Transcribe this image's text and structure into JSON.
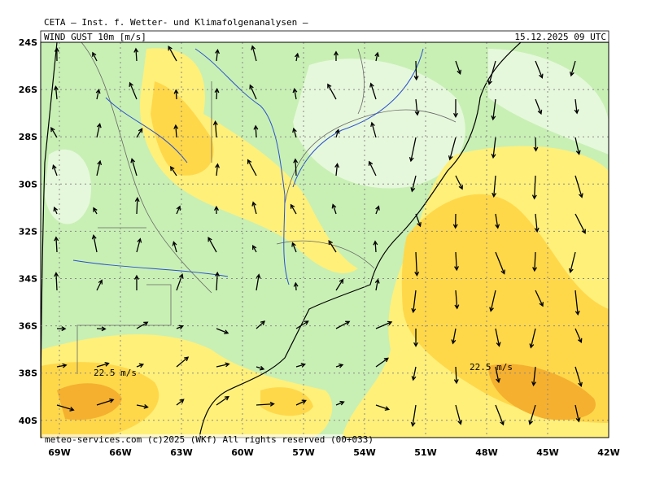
{
  "header": {
    "title": "CETA — Inst. f. Wetter- und Klimafolgenanalysen —",
    "field": "WIND GUST 10m [m/s]",
    "valid_time": "15.12.2025 09 UTC"
  },
  "map": {
    "lat_labels": [
      "24S",
      "26S",
      "28S",
      "30S",
      "32S",
      "34S",
      "36S",
      "38S",
      "40S"
    ],
    "lon_labels": [
      "69W",
      "66W",
      "63W",
      "60W",
      "57W",
      "54W",
      "51W",
      "48W",
      "45W",
      "42W"
    ],
    "annotations": [
      "22.5 m/s",
      "22.5 m/s"
    ],
    "footer": "meteo-services.com (c)2025 (WKf) All rights reserved (00+033)"
  }
}
